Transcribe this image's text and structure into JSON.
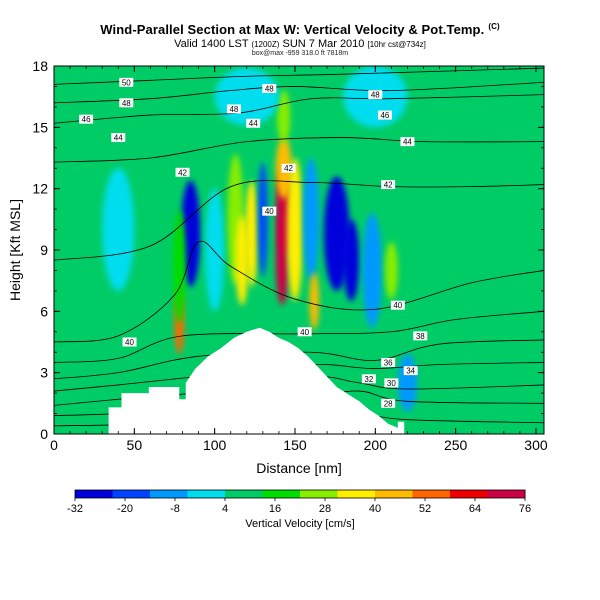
{
  "header": {
    "title": "Wind-Parallel Section at Max W: Vertical Velocity & Pot.Temp.",
    "title_mark": "(C)",
    "subtitle_main": "Valid 1400 LST",
    "subtitle_utc": "(1200Z)",
    "subtitle_date": "SUN 7 Mar 2010",
    "subtitle_run": "[10hr cst@734z]",
    "subsub": "box@max -959 318.0 ft 7818m"
  },
  "colors": {
    "contour": "#000000",
    "terrain": "#ffffff",
    "background": "#00cc55"
  },
  "chart_data": {
    "type": "heatmap",
    "xlabel": "Distance [nm]",
    "ylabel": "Height [Kft MSL]",
    "xlim": [
      0,
      305
    ],
    "ylim": [
      0,
      18
    ],
    "xticks": [
      "0",
      "50",
      "100",
      "150",
      "200",
      "250",
      "300"
    ],
    "yticks": [
      "0",
      "3",
      "6",
      "9",
      "12",
      "15",
      "18"
    ],
    "colorbar": {
      "label": "Vertical Velocity [cm/s]",
      "ticks": [
        "-32",
        "-20",
        "-8",
        "4",
        "16",
        "28",
        "40",
        "52",
        "64",
        "76"
      ],
      "min": -32,
      "max": 76,
      "colors": [
        "#0000dd",
        "#0044ff",
        "#0099ff",
        "#00ddee",
        "#00cc66",
        "#00dd00",
        "#88ee00",
        "#ffee00",
        "#ffbb00",
        "#ff6600",
        "#ee0000",
        "#cc0044"
      ]
    },
    "terrain_profile": {
      "x": [
        0,
        34,
        34,
        42,
        42,
        59,
        59,
        65,
        70,
        73,
        78,
        78,
        82,
        82,
        88,
        96,
        104,
        112,
        120,
        128,
        134,
        140,
        146,
        152,
        158,
        164,
        170,
        176,
        182,
        190,
        196,
        202,
        208,
        214,
        214,
        218,
        218,
        305
      ],
      "height": [
        0,
        0,
        1.3,
        1.3,
        2,
        2,
        2.3,
        2.3,
        2.3,
        2.3,
        2.3,
        1.7,
        1.7,
        2.5,
        3.2,
        3.8,
        4.2,
        4.7,
        5.0,
        5.2,
        5.0,
        4.7,
        4.5,
        4.2,
        3.8,
        3.3,
        2.8,
        2.3,
        2.0,
        1.6,
        1.2,
        0.9,
        0.5,
        0.3,
        0.6,
        0.6,
        0,
        0
      ]
    },
    "velocity_cells": [
      {
        "x": 85,
        "z": 9.8,
        "value": -30,
        "sx": 6,
        "sz": 2.6
      },
      {
        "x": 78,
        "z": 5.5,
        "value": 52,
        "sx": 3,
        "sz": 1.6
      },
      {
        "x": 78,
        "z": 8.2,
        "value": 20,
        "sx": 4,
        "sz": 2.8
      },
      {
        "x": 100,
        "z": 9.0,
        "value": 0,
        "sx": 6,
        "sz": 3
      },
      {
        "x": 113,
        "z": 10.5,
        "value": 22,
        "sx": 5,
        "sz": 3.2
      },
      {
        "x": 117,
        "z": 8.5,
        "value": 34,
        "sx": 4,
        "sz": 2.2
      },
      {
        "x": 123,
        "z": 9.8,
        "value": 38,
        "sx": 4,
        "sz": 2.6
      },
      {
        "x": 130,
        "z": 10.5,
        "value": -18,
        "sx": 3,
        "sz": 2.8
      },
      {
        "x": 143,
        "z": 11.0,
        "value": 76,
        "sx": 5,
        "sz": 2.2
      },
      {
        "x": 142,
        "z": 8.5,
        "value": 70,
        "sx": 4,
        "sz": 2.2
      },
      {
        "x": 143,
        "z": 13.0,
        "value": 48,
        "sx": 5,
        "sz": 1.5
      },
      {
        "x": 150,
        "z": 10.0,
        "value": 34,
        "sx": 5,
        "sz": 3.5
      },
      {
        "x": 143,
        "z": 15.5,
        "value": 30,
        "sx": 4,
        "sz": 1.3
      },
      {
        "x": 160,
        "z": 10.5,
        "value": -10,
        "sx": 5,
        "sz": 3
      },
      {
        "x": 162,
        "z": 6.5,
        "value": 40,
        "sx": 3,
        "sz": 1.4
      },
      {
        "x": 176,
        "z": 9.8,
        "value": -28,
        "sx": 8,
        "sz": 2.8
      },
      {
        "x": 185,
        "z": 8.5,
        "value": -32,
        "sx": 5,
        "sz": 2
      },
      {
        "x": 198,
        "z": 8.0,
        "value": -10,
        "sx": 6,
        "sz": 2.8
      },
      {
        "x": 210,
        "z": 8.0,
        "value": 30,
        "sx": 4,
        "sz": 1.4
      },
      {
        "x": 220,
        "z": 2.5,
        "value": -10,
        "sx": 6,
        "sz": 1.4
      },
      {
        "x": 120,
        "z": 3.8,
        "value": 10,
        "sx": 10,
        "sz": 1.2
      },
      {
        "x": 40,
        "z": 10.0,
        "value": 0,
        "sx": 10,
        "sz": 3
      },
      {
        "x": 260,
        "z": 6.0,
        "value": 4,
        "sx": 30,
        "sz": 5
      },
      {
        "x": 120,
        "z": 16.5,
        "value": -4,
        "sx": 20,
        "sz": 1.4
      },
      {
        "x": 200,
        "z": 16.5,
        "value": 2,
        "sx": 20,
        "sz": 1.5
      }
    ],
    "isentropes": [
      {
        "label": "28",
        "levels": [
          [
            0,
            0.4
          ],
          [
            40,
            0.45
          ],
          [
            100,
            0.6
          ],
          [
            160,
            0.9
          ],
          [
            190,
            1.0
          ],
          [
            220,
            0.7
          ],
          [
            305,
            0.55
          ]
        ]
      },
      {
        "label": "30",
        "levels": [
          [
            0,
            0.9
          ],
          [
            40,
            1.0
          ],
          [
            100,
            1.3
          ],
          [
            160,
            1.8
          ],
          [
            190,
            2.1
          ],
          [
            220,
            1.6
          ],
          [
            305,
            1.5
          ]
        ]
      },
      {
        "label": "32",
        "levels": [
          [
            0,
            1.4
          ],
          [
            40,
            1.7
          ],
          [
            100,
            2.1
          ],
          [
            160,
            2.8
          ],
          [
            190,
            2.5
          ],
          [
            220,
            2.2
          ],
          [
            305,
            2.4
          ]
        ]
      },
      {
        "label": "34",
        "levels": [
          [
            0,
            2.1
          ],
          [
            40,
            2.4
          ],
          [
            100,
            2.9
          ],
          [
            160,
            3.4
          ],
          [
            200,
            3.2
          ],
          [
            240,
            3.4
          ],
          [
            305,
            3.5
          ]
        ]
      },
      {
        "label": "36",
        "levels": [
          [
            0,
            2.7
          ],
          [
            40,
            3.0
          ],
          [
            90,
            3.8
          ],
          [
            160,
            4.0
          ],
          [
            200,
            3.6
          ],
          [
            240,
            4.4
          ],
          [
            305,
            4.6
          ]
        ]
      },
      {
        "label": "38",
        "levels": [
          [
            0,
            3.5
          ],
          [
            40,
            3.7
          ],
          [
            80,
            4.8
          ],
          [
            160,
            4.9
          ],
          [
            210,
            5.0
          ],
          [
            250,
            5.6
          ],
          [
            305,
            6.0
          ]
        ]
      },
      {
        "label": "40",
        "levels": [
          [
            0,
            4.5
          ],
          [
            40,
            4.8
          ],
          [
            75,
            6.8
          ],
          [
            90,
            9.4
          ],
          [
            110,
            8.2
          ],
          [
            150,
            6.6
          ],
          [
            200,
            6.1
          ],
          [
            260,
            7.4
          ],
          [
            305,
            8.0
          ]
        ]
      },
      {
        "label": "42",
        "levels": [
          [
            0,
            8.5
          ],
          [
            60,
            9.2
          ],
          [
            110,
            12.1
          ],
          [
            160,
            12.3
          ],
          [
            210,
            12.1
          ],
          [
            260,
            12.1
          ],
          [
            305,
            12.2
          ]
        ]
      },
      {
        "label": "44",
        "levels": [
          [
            0,
            13.3
          ],
          [
            60,
            13.5
          ],
          [
            120,
            14.3
          ],
          [
            180,
            14.5
          ],
          [
            230,
            14.3
          ],
          [
            305,
            14.3
          ]
        ]
      },
      {
        "label": "46",
        "levels": [
          [
            0,
            15.2
          ],
          [
            60,
            15.6
          ],
          [
            115,
            15.7
          ],
          [
            160,
            16.4
          ],
          [
            210,
            16.4
          ],
          [
            305,
            16.6
          ]
        ]
      },
      {
        "label": "48",
        "levels": [
          [
            0,
            16.2
          ],
          [
            60,
            16.4
          ],
          [
            110,
            16.8
          ],
          [
            150,
            17.0
          ],
          [
            210,
            16.8
          ],
          [
            305,
            17.2
          ]
        ]
      },
      {
        "label": "50",
        "levels": [
          [
            0,
            17.1
          ],
          [
            60,
            17.3
          ],
          [
            120,
            17.5
          ],
          [
            180,
            17.6
          ],
          [
            305,
            17.9
          ]
        ]
      }
    ],
    "contour_labels": [
      {
        "text": "50",
        "x": 45,
        "z": 17.2
      },
      {
        "text": "48",
        "x": 45,
        "z": 16.2
      },
      {
        "text": "46",
        "x": 20,
        "z": 15.4
      },
      {
        "text": "44",
        "x": 40,
        "z": 14.5
      },
      {
        "text": "48",
        "x": 112,
        "z": 15.9
      },
      {
        "text": "44",
        "x": 124,
        "z": 15.2
      },
      {
        "text": "48",
        "x": 134,
        "z": 16.9
      },
      {
        "text": "42",
        "x": 80,
        "z": 12.8
      },
      {
        "text": "42",
        "x": 146,
        "z": 13.0
      },
      {
        "text": "40",
        "x": 134,
        "z": 10.9
      },
      {
        "text": "48",
        "x": 200,
        "z": 16.6
      },
      {
        "text": "46",
        "x": 206,
        "z": 15.6
      },
      {
        "text": "44",
        "x": 220,
        "z": 14.3
      },
      {
        "text": "42",
        "x": 208,
        "z": 12.2
      },
      {
        "text": "40",
        "x": 214,
        "z": 6.3
      },
      {
        "text": "38",
        "x": 228,
        "z": 4.8
      },
      {
        "text": "40",
        "x": 156,
        "z": 5.0
      },
      {
        "text": "40",
        "x": 47,
        "z": 4.5
      },
      {
        "text": "36",
        "x": 208,
        "z": 3.5
      },
      {
        "text": "34",
        "x": 222,
        "z": 3.1
      },
      {
        "text": "32",
        "x": 196,
        "z": 2.7
      },
      {
        "text": "30",
        "x": 210,
        "z": 2.5
      },
      {
        "text": "28",
        "x": 208,
        "z": 1.5
      }
    ]
  }
}
